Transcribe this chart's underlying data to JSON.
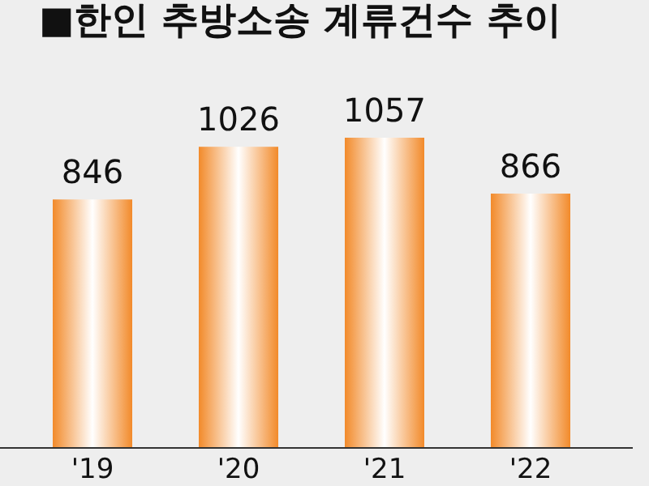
{
  "chart_data": {
    "type": "bar",
    "title": "■한인 추방소송 계류건수 추이",
    "categories": [
      "'19",
      "'20",
      "'21",
      "'22"
    ],
    "values": [
      846,
      1026,
      1057,
      866
    ],
    "color": "#f28a2a",
    "data_labels": true
  }
}
